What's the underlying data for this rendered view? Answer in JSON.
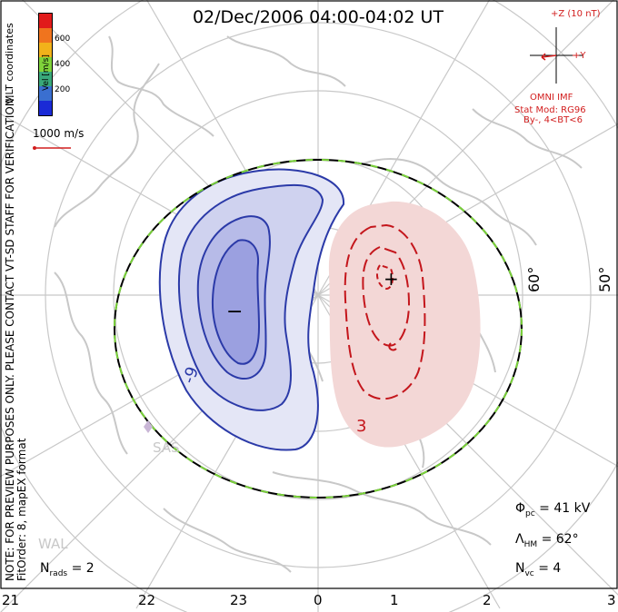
{
  "title": "02/Dec/2006 04:00-04:02 UT",
  "preview_note_line1": "NOTE: FOR PREVIEW PURPOSES ONLY. PLEASE CONTACT VT-SD STAFF FOR VERIFICATION.",
  "preview_note_line2": "FitOrder: 8, mapEX format",
  "coordinates": "MLT coordinates",
  "colorbar": {
    "unit_label": "Vel [m/s]",
    "ticks": [
      "600",
      "400",
      "200"
    ],
    "colors": [
      "#e11b1b",
      "#f0741e",
      "#f2b21a",
      "#7fd33a",
      "#39a87a",
      "#3a6fd0",
      "#1a2ad6"
    ]
  },
  "vector_scale": "1000 m/s",
  "imf": {
    "label_z": "+Z (10 nT)",
    "label_y": "+Y",
    "source": "OMNI IMF",
    "stat_mod": "Stat Mod: RG96",
    "bin": "By-, 4<BT<6"
  },
  "stats": {
    "phi_symbol": "Φ",
    "phi_sub": "pc",
    "phi_value": "= 41 kV",
    "lambda_symbol": "Λ",
    "lambda_sub": "HM",
    "lambda_value": "= 62°",
    "nvc_symbol": "N",
    "nvc_sub": "vc",
    "nvc_value": "= 4",
    "nrads_symbol": "N",
    "nrads_sub": "rads",
    "nrads_value": "= 2"
  },
  "mlt_ticks": [
    "21",
    "22",
    "23",
    "0",
    "1",
    "2",
    "3"
  ],
  "lat_labels": [
    "60°",
    "50°"
  ],
  "contour_labels": {
    "negative": "-9",
    "positive": "3"
  },
  "extrema": {
    "min_marker": "−",
    "max_marker": "+"
  },
  "station_labels": {
    "sas": "SAS",
    "wal": "WAL"
  },
  "colors": {
    "negative_cell": "#2b3aa8",
    "positive_cell": "#c4161c",
    "boundary_green": "#7ad23a",
    "grid": "#c8c8c8",
    "coast": "#c8c8c8"
  }
}
